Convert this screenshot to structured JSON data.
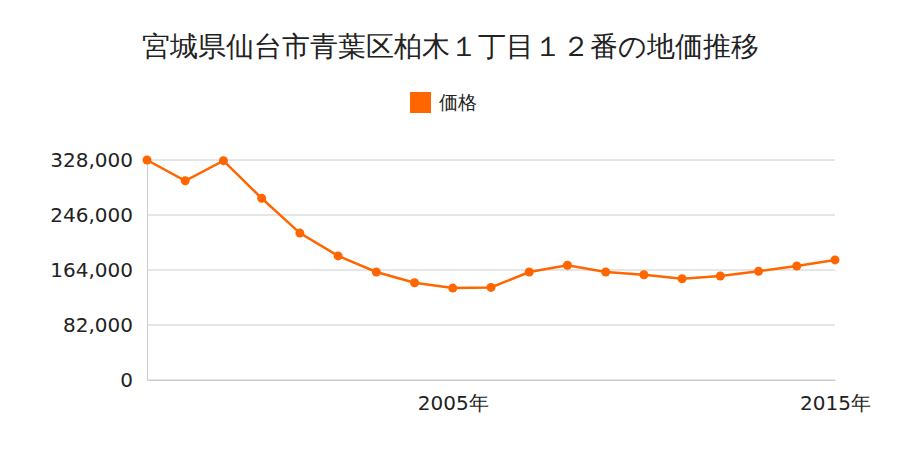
{
  "chart_data": {
    "type": "line",
    "title": "宮城県仙台市青葉区柏木１丁目１２番の地価推移",
    "x": [
      1997,
      1998,
      1999,
      2000,
      2001,
      2002,
      2003,
      2004,
      2005,
      2006,
      2007,
      2008,
      2009,
      2010,
      2011,
      2012,
      2013,
      2014,
      2015
    ],
    "series": [
      {
        "name": "価格",
        "color": "#ff6600",
        "marker": "circle",
        "values": [
          328000,
          297000,
          327000,
          271000,
          219000,
          185000,
          161000,
          145000,
          137000,
          138000,
          161000,
          171000,
          161000,
          157000,
          151000,
          155000,
          162000,
          170000,
          179000
        ]
      }
    ],
    "xlim": [
      1997,
      2015
    ],
    "xticks": [
      {
        "value": 2005,
        "label": "2005年"
      },
      {
        "value": 2015,
        "label": "2015年"
      }
    ],
    "ylim": [
      0,
      328000
    ],
    "yticks": [
      0,
      {
        "value": 82000,
        "label": "82,000"
      },
      {
        "value": 164000,
        "label": "164,000"
      },
      {
        "value": 246000,
        "label": "246,000"
      },
      {
        "value": 328000,
        "label": "328,000"
      }
    ],
    "grid": true,
    "legend": "top"
  }
}
